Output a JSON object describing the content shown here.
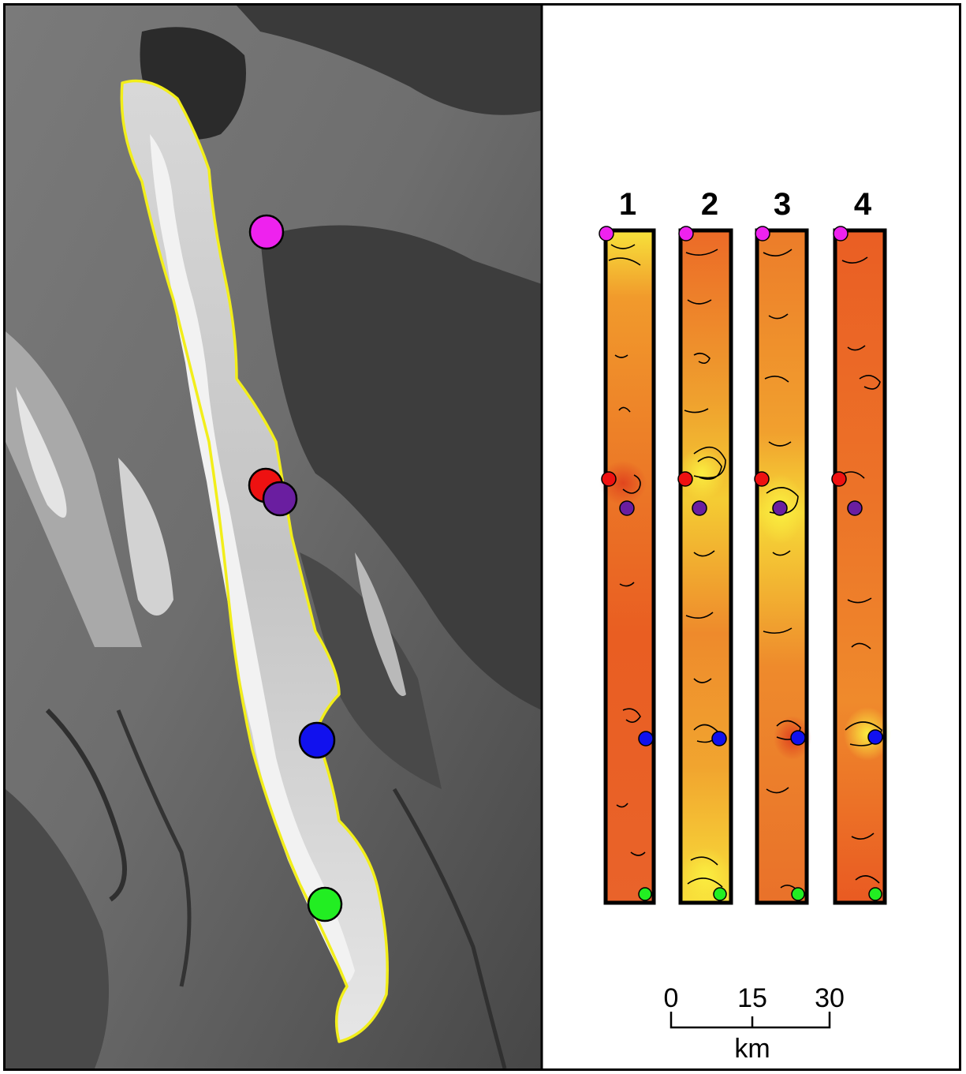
{
  "map": {
    "dem_panel": {
      "boundary_color": "#f2ee1a",
      "sites": [
        {
          "name": "magenta",
          "color": "#ee22ee"
        },
        {
          "name": "red",
          "color": "#ee1111"
        },
        {
          "name": "purple",
          "color": "#6a1ea0"
        },
        {
          "name": "blue",
          "color": "#1111ee"
        },
        {
          "name": "green",
          "color": "#22ee22"
        }
      ]
    },
    "strips": [
      {
        "label": "1"
      },
      {
        "label": "2"
      },
      {
        "label": "3"
      },
      {
        "label": "4"
      }
    ],
    "scale_bar": {
      "ticks": [
        "0",
        "15",
        "30"
      ],
      "unit": "km"
    }
  }
}
